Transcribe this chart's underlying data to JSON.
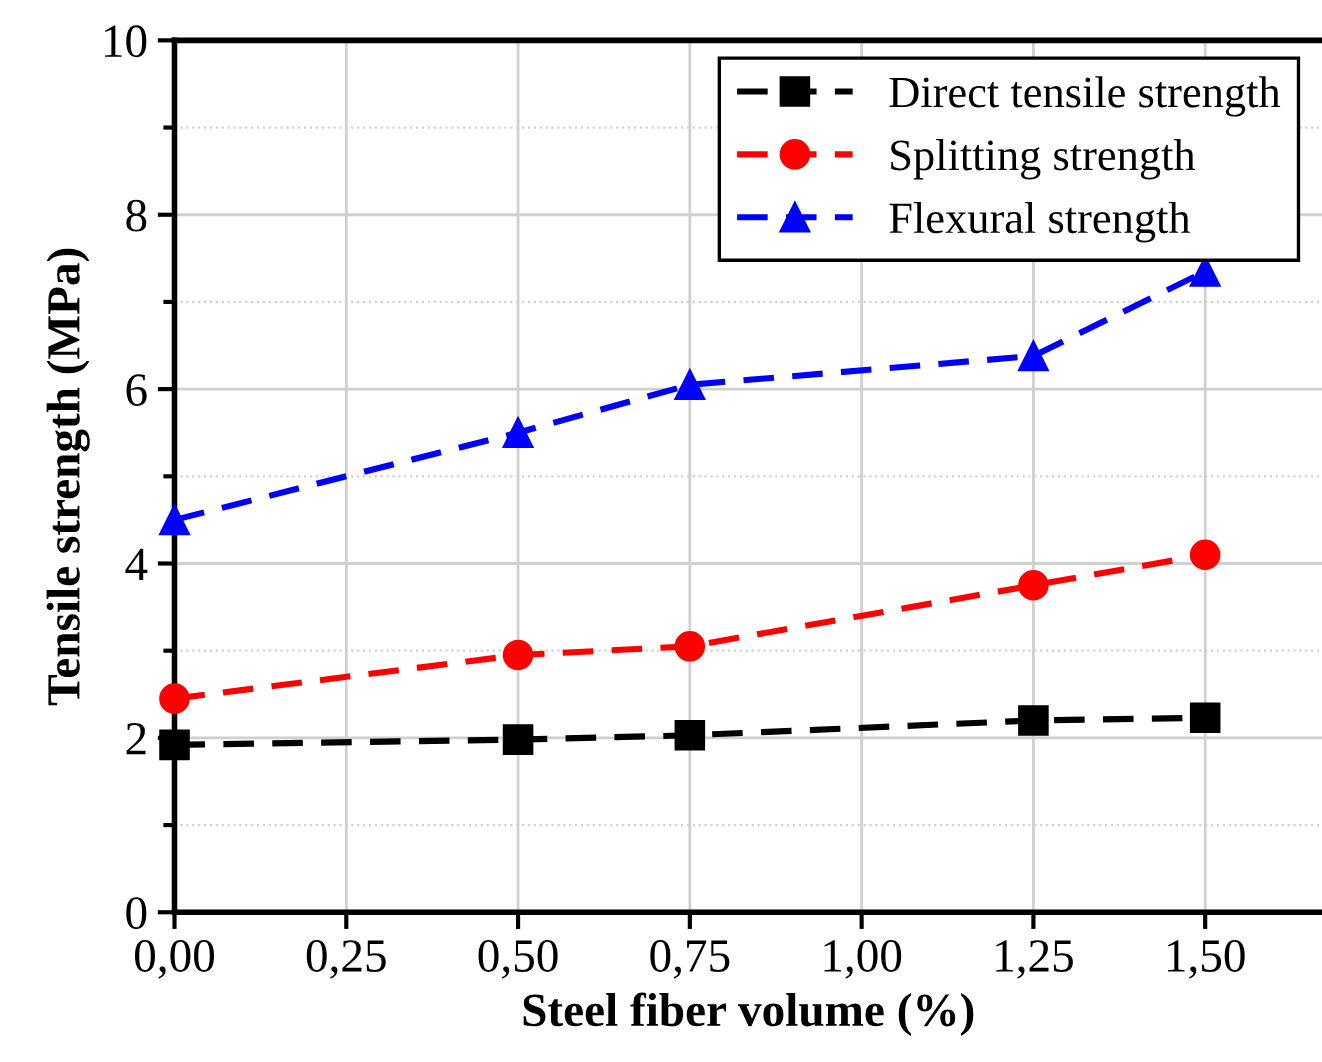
{
  "chart_data": {
    "type": "line",
    "xlabel": "Steel fiber volume (%)",
    "ylabel": "Tensile strength (MPa)",
    "x": [
      0,
      0.5,
      0.75,
      1.25,
      1.5
    ],
    "series": [
      {
        "name": "Direct tensile strength",
        "color": "#000000",
        "marker": "square",
        "values": [
          1.92,
          1.98,
          2.03,
          2.2,
          2.23
        ]
      },
      {
        "name": "Splitting strength",
        "color": "#ff0000",
        "marker": "circle",
        "values": [
          2.45,
          2.95,
          3.05,
          3.75,
          4.1
        ]
      },
      {
        "name": "Flexural strength",
        "color": "#0000ff",
        "marker": "triangle",
        "values": [
          4.5,
          5.5,
          6.05,
          6.38,
          7.35
        ]
      }
    ],
    "xlim": [
      0,
      1.67
    ],
    "xticks": [
      {
        "value": 0,
        "label": "0,00"
      },
      {
        "value": 0.25,
        "label": "0,25"
      },
      {
        "value": 0.5,
        "label": "0,50"
      },
      {
        "value": 0.75,
        "label": "0,75"
      },
      {
        "value": 1.0,
        "label": "1,00"
      },
      {
        "value": 1.25,
        "label": "1,25"
      },
      {
        "value": 1.5,
        "label": "1,50"
      }
    ],
    "ylim": [
      0,
      10
    ],
    "yticks": [
      0,
      2,
      4,
      6,
      8,
      10
    ],
    "grid": true,
    "legend": "top right",
    "line_style": "dashed"
  }
}
